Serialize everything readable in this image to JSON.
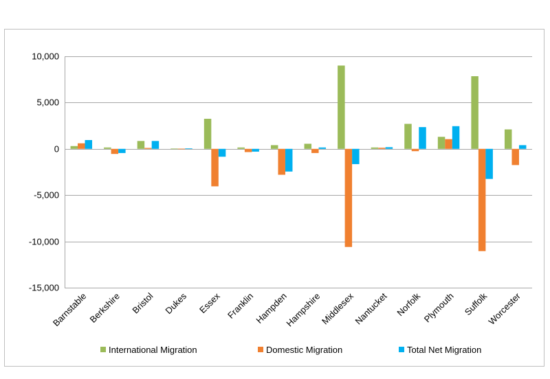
{
  "chart_data": {
    "type": "bar",
    "title": "",
    "xlabel": "",
    "ylabel": "",
    "ylim": [
      -15000,
      10000
    ],
    "yticks": [
      10000,
      5000,
      0,
      -5000,
      -10000,
      -15000
    ],
    "ytick_labels": [
      "10,000",
      "5,000",
      "0",
      "-5,000",
      "-10,000",
      "-15,000"
    ],
    "categories": [
      "Barnstable",
      "Berkshire",
      "Bristol",
      "Dukes",
      "Essex",
      "Franklin",
      "Hampden",
      "Hampshire",
      "Middlesex",
      "Nantucket",
      "Norfolk",
      "Plymouth",
      "Suffolk",
      "Worcester"
    ],
    "series": [
      {
        "name": "International Migration",
        "color": "#9bbb59",
        "values": [
          300,
          150,
          850,
          30,
          3250,
          150,
          400,
          550,
          9000,
          150,
          2700,
          1300,
          7850,
          2100
        ]
      },
      {
        "name": "Domestic Migration",
        "color": "#f08030",
        "values": [
          600,
          -550,
          100,
          20,
          -4050,
          -350,
          -2800,
          -450,
          -10600,
          120,
          -250,
          1050,
          -11050,
          -1750
        ]
      },
      {
        "name": "Total Net Migration",
        "color": "#00b0f0",
        "values": [
          950,
          -450,
          850,
          50,
          -850,
          -300,
          -2450,
          150,
          -1650,
          180,
          2350,
          2450,
          -3250,
          400
        ]
      }
    ],
    "legend_position": "bottom",
    "grid": true
  }
}
